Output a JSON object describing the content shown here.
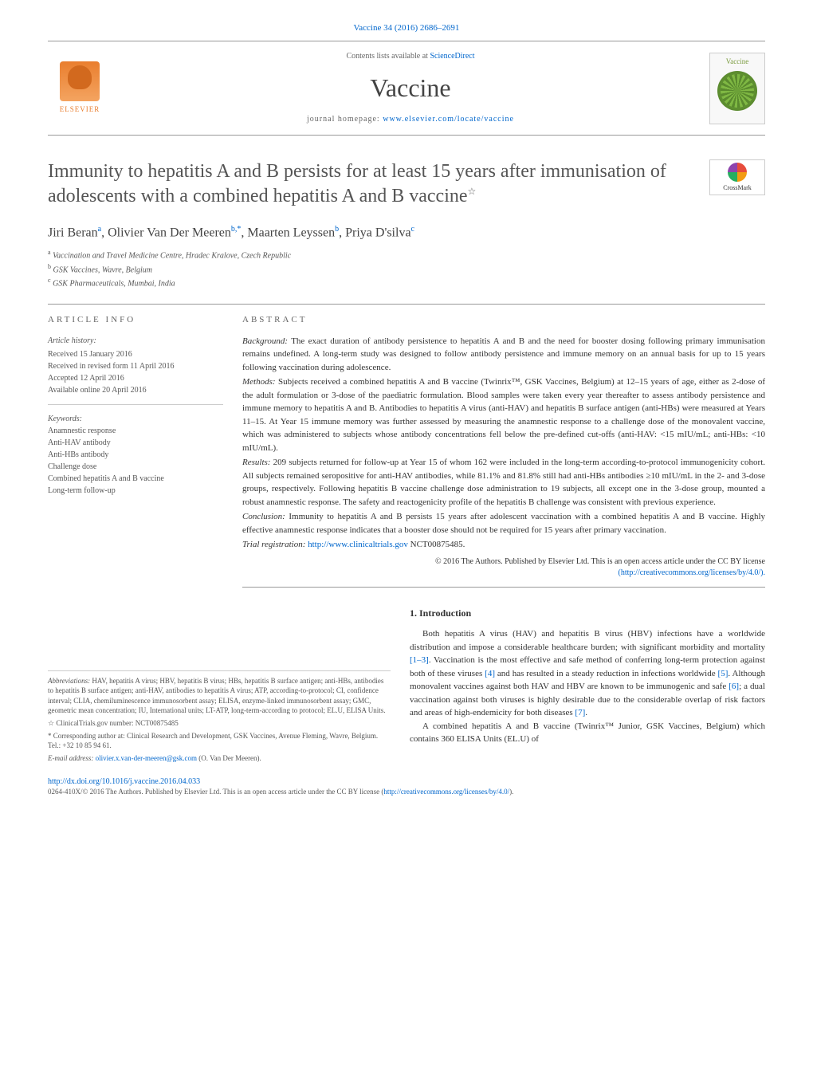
{
  "citation": "Vaccine 34 (2016) 2686–2691",
  "masthead": {
    "contents_prefix": "Contents lists available at ",
    "contents_link": "ScienceDirect",
    "journal_title": "Vaccine",
    "homepage_prefix": "journal homepage: ",
    "homepage_url": "www.elsevier.com/locate/vaccine",
    "publisher_name": "ELSEVIER",
    "cover_label": "Vaccine"
  },
  "crossmark_label": "CrossMark",
  "article": {
    "title": "Immunity to hepatitis A and B persists for at least 15 years after immunisation of adolescents with a combined hepatitis A and B vaccine",
    "title_star": "☆",
    "authors_html": "Jiri Beran<sup>a</sup>, Olivier Van Der Meeren<sup>b,*</sup>, Maarten Leyssen<sup>b</sup>, Priya D'silva<sup>c</sup>",
    "affiliations": [
      "a Vaccination and Travel Medicine Centre, Hradec Kralove, Czech Republic",
      "b GSK Vaccines, Wavre, Belgium",
      "c GSK Pharmaceuticals, Mumbai, India"
    ]
  },
  "article_info": {
    "heading": "ARTICLE INFO",
    "history_label": "Article history:",
    "history": [
      "Received 15 January 2016",
      "Received in revised form 11 April 2016",
      "Accepted 12 April 2016",
      "Available online 20 April 2016"
    ],
    "keywords_label": "Keywords:",
    "keywords": [
      "Anamnestic response",
      "Anti-HAV antibody",
      "Anti-HBs antibody",
      "Challenge dose",
      "Combined hepatitis A and B vaccine",
      "Long-term follow-up"
    ]
  },
  "abstract": {
    "heading": "ABSTRACT",
    "background_label": "Background:",
    "background": "The exact duration of antibody persistence to hepatitis A and B and the need for booster dosing following primary immunisation remains undefined. A long-term study was designed to follow antibody persistence and immune memory on an annual basis for up to 15 years following vaccination during adolescence.",
    "methods_label": "Methods:",
    "methods": "Subjects received a combined hepatitis A and B vaccine (Twinrix™, GSK Vaccines, Belgium) at 12–15 years of age, either as 2-dose of the adult formulation or 3-dose of the paediatric formulation. Blood samples were taken every year thereafter to assess antibody persistence and immune memory to hepatitis A and B. Antibodies to hepatitis A virus (anti-HAV) and hepatitis B surface antigen (anti-HBs) were measured at Years 11–15. At Year 15 immune memory was further assessed by measuring the anamnestic response to a challenge dose of the monovalent vaccine, which was administered to subjects whose antibody concentrations fell below the pre-defined cut-offs (anti-HAV: <15 mIU/mL; anti-HBs: <10 mIU/mL).",
    "results_label": "Results:",
    "results": "209 subjects returned for follow-up at Year 15 of whom 162 were included in the long-term according-to-protocol immunogenicity cohort. All subjects remained seropositive for anti-HAV antibodies, while 81.1% and 81.8% still had anti-HBs antibodies ≥10 mIU/mL in the 2- and 3-dose groups, respectively. Following hepatitis B vaccine challenge dose administration to 19 subjects, all except one in the 3-dose group, mounted a robust anamnestic response. The safety and reactogenicity profile of the hepatitis B challenge was consistent with previous experience.",
    "conclusion_label": "Conclusion:",
    "conclusion": "Immunity to hepatitis A and B persists 15 years after adolescent vaccination with a combined hepatitis A and B vaccine. Highly effective anamnestic response indicates that a booster dose should not be required for 15 years after primary vaccination.",
    "trial_label": "Trial registration:",
    "trial_link": "http://www.clinicaltrials.gov",
    "trial_id": " NCT00875485.",
    "copyright": "© 2016 The Authors. Published by Elsevier Ltd. This is an open access article under the CC BY license",
    "cc_link": "(http://creativecommons.org/licenses/by/4.0/)."
  },
  "introduction": {
    "heading": "1.  Introduction",
    "p1_a": "Both hepatitis A virus (HAV) and hepatitis B virus (HBV) infections have a worldwide distribution and impose a considerable healthcare burden; with significant morbidity and mortality ",
    "p1_ref1": "[1–3]",
    "p1_b": ". Vaccination is the most effective and safe method of conferring long-term protection against both of these viruses ",
    "p1_ref2": "[4]",
    "p1_c": " and has resulted in a steady reduction in infections worldwide ",
    "p1_ref3": "[5]",
    "p1_d": ". Although monovalent vaccines against both HAV and HBV are known to be immunogenic and safe ",
    "p1_ref4": "[6]",
    "p1_e": "; a dual vaccination against both viruses is highly desirable due to the considerable overlap of risk factors and areas of high-endemicity for both diseases ",
    "p1_ref5": "[7]",
    "p1_f": ".",
    "p2": "A combined hepatitis A and B vaccine (Twinrix™ Junior, GSK Vaccines, Belgium) which contains 360 ELISA Units (EL.U) of"
  },
  "footnotes": {
    "abbrev_label": "Abbreviations:",
    "abbrev": " HAV, hepatitis A virus; HBV, hepatitis B virus; HBs, hepatitis B surface antigen; anti-HBs, antibodies to hepatitis B surface antigen; anti-HAV, antibodies to hepatitis A virus; ATP, according-to-protocol; CI, confidence interval; CLIA, chemiluminescence immunosorbent assay; ELISA, enzyme-linked immunosorbent assay; GMC, geometric mean concentration; IU, International units; LT-ATP, long-term-according to protocol; EL.U, ELISA Units.",
    "trial_note": "☆ ClinicalTrials.gov number: NCT00875485",
    "corr_author": "* Corresponding author at: Clinical Research and Development, GSK Vaccines, Avenue Fleming, Wavre, Belgium. Tel.: +32 10 85 94 61.",
    "email_label": "E-mail address: ",
    "email": "olivier.x.van-der-meeren@gsk.com",
    "email_suffix": " (O. Van Der Meeren)."
  },
  "footer": {
    "doi": "http://dx.doi.org/10.1016/j.vaccine.2016.04.033",
    "license_prefix": "0264-410X/© 2016 The Authors. Published by Elsevier Ltd. This is an open access article under the CC BY license (",
    "license_link": "http://creativecommons.org/licenses/by/4.0/",
    "license_suffix": ")."
  },
  "styling": {
    "link_color": "#0066cc",
    "text_color": "#333333",
    "muted_color": "#666666",
    "elsevier_orange": "#e97e2e",
    "cover_green": "#7fb843",
    "title_fontsize": 24,
    "journal_title_fontsize": 32,
    "body_fontsize": 11,
    "info_fontsize": 10,
    "footnote_fontsize": 9
  }
}
